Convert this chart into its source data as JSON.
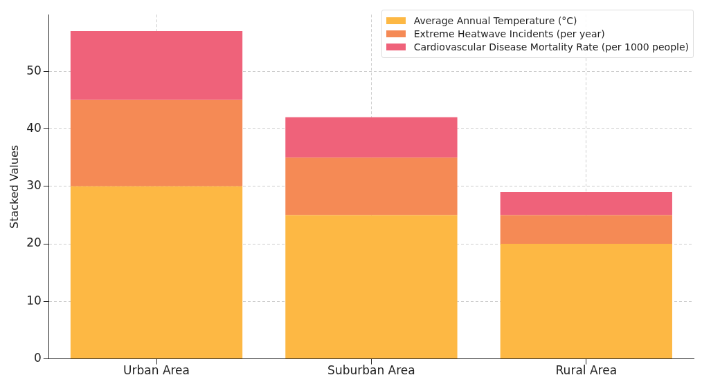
{
  "chart_data": {
    "type": "bar",
    "stacked": true,
    "ylabel": "Stacked Values",
    "categories": [
      "Urban Area",
      "Suburban Area",
      "Rural Area"
    ],
    "series": [
      {
        "name": "Average Annual Temperature (°C)",
        "color": "#fdb844",
        "values": [
          30,
          25,
          20
        ]
      },
      {
        "name": "Extreme Heatwave Incidents (per year)",
        "color": "#f58a55",
        "values": [
          15,
          10,
          5
        ]
      },
      {
        "name": "Cardiovascular Disease Mortality Rate (per 1000 people)",
        "color": "#ef627a",
        "values": [
          12,
          7,
          4
        ]
      }
    ],
    "ylim": [
      0,
      59.85
    ],
    "yticks": [
      0,
      10,
      20,
      30,
      40,
      50
    ],
    "grid": true,
    "legend": "top right"
  }
}
